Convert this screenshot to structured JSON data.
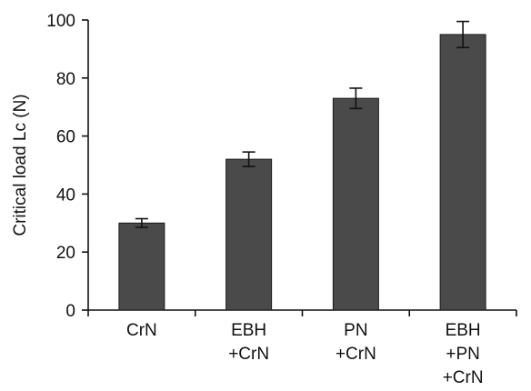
{
  "chart_data": {
    "type": "bar",
    "ylabel": "Critical load Lc (N)",
    "xlabel": "",
    "ylim": [
      0,
      100
    ],
    "yticks": [
      0,
      20,
      40,
      60,
      80,
      100
    ],
    "categories": [
      [
        "CrN"
      ],
      [
        "EBH",
        "+CrN"
      ],
      [
        "PN",
        "+CrN"
      ],
      [
        "EBH",
        "+PN",
        "+CrN"
      ]
    ],
    "series": [
      {
        "values": [
          30,
          52,
          73,
          95
        ],
        "errors": [
          1.5,
          2.5,
          3.5,
          4.5
        ]
      }
    ],
    "bar_color": "#4a4a4a",
    "grid": false,
    "legend": "none"
  }
}
